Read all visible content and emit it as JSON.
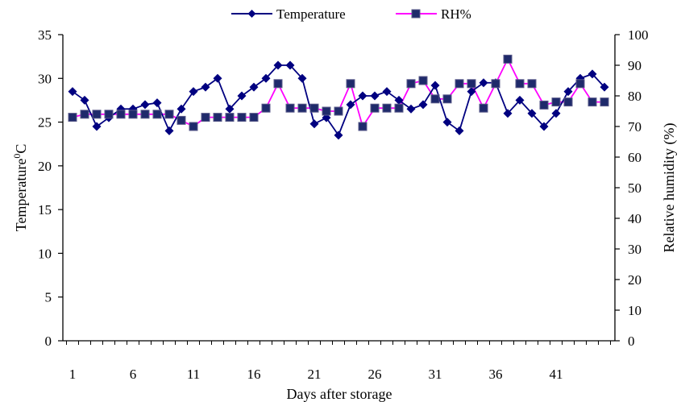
{
  "chart_data": {
    "type": "line",
    "xlabel": "Days after storage",
    "ylabel_left": "Temperature",
    "ylabel_left_sup": "0",
    "ylabel_left_unit": "C",
    "ylabel_right": "Relative humidity (%)",
    "ylim_left": [
      0,
      35
    ],
    "yticks_left": [
      "0",
      "5",
      "10",
      "15",
      "20",
      "25",
      "30",
      "35"
    ],
    "ylim_right": [
      0,
      100
    ],
    "yticks_right": [
      "0",
      "10",
      "20",
      "30",
      "40",
      "50",
      "60",
      "70",
      "80",
      "90",
      "100"
    ],
    "x": [
      1,
      2,
      3,
      4,
      5,
      6,
      7,
      8,
      9,
      10,
      11,
      12,
      13,
      14,
      15,
      16,
      17,
      18,
      19,
      20,
      21,
      22,
      23,
      24,
      25,
      26,
      27,
      28,
      29,
      30,
      31,
      32,
      33,
      34,
      35,
      36,
      37,
      38,
      39,
      40,
      41,
      42,
      43,
      44,
      45
    ],
    "xticks": [
      "1",
      "6",
      "11",
      "16",
      "21",
      "26",
      "31",
      "36",
      "41"
    ],
    "legend_position": "top-center",
    "grid": false,
    "series": [
      {
        "name": "Temperature",
        "axis": "left",
        "color": "#000080",
        "marker": "diamond",
        "values": [
          28.5,
          27.5,
          24.5,
          25.5,
          26.5,
          26.5,
          27.0,
          27.2,
          24.0,
          26.5,
          28.5,
          29.0,
          30.0,
          26.5,
          28.0,
          29.0,
          30.0,
          31.5,
          31.5,
          30.0,
          24.8,
          25.5,
          23.5,
          27.0,
          28.0,
          28.0,
          28.5,
          27.5,
          26.5,
          27.0,
          29.2,
          25.0,
          24.0,
          28.5,
          29.5,
          29.5,
          26.0,
          27.5,
          26.0,
          24.5,
          26.0,
          28.5,
          30.0,
          30.5,
          29.0
        ]
      },
      {
        "name": "RH%",
        "axis": "right",
        "color": "#ff00ff",
        "marker_color": "#1f2a6b",
        "marker": "square",
        "values": [
          73,
          74,
          74,
          74,
          74,
          74,
          74,
          74,
          74,
          72,
          70,
          73,
          73,
          73,
          73,
          73,
          76,
          84,
          76,
          76,
          76,
          75,
          75,
          84,
          70,
          76,
          76,
          76,
          84,
          85,
          79,
          79,
          84,
          84,
          76,
          84,
          92,
          84,
          84,
          77,
          78,
          78,
          84,
          78,
          78
        ]
      }
    ]
  }
}
